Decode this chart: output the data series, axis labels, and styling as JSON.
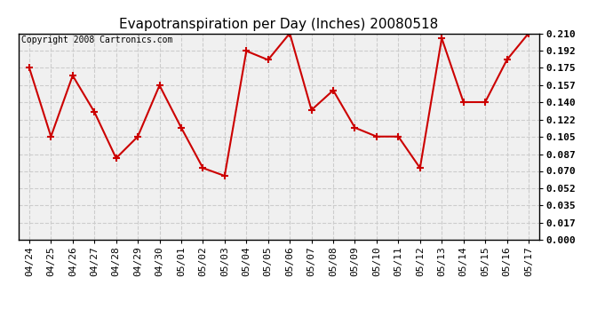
{
  "title": "Evapotranspiration per Day (Inches) 20080518",
  "copyright": "Copyright 2008 Cartronics.com",
  "x_labels": [
    "04/24",
    "04/25",
    "04/26",
    "04/27",
    "04/28",
    "04/29",
    "04/30",
    "05/01",
    "05/02",
    "05/03",
    "05/04",
    "05/05",
    "05/06",
    "05/07",
    "05/08",
    "05/09",
    "05/10",
    "05/11",
    "05/12",
    "05/13",
    "05/14",
    "05/15",
    "05/16",
    "05/17"
  ],
  "y_values": [
    0.175,
    0.105,
    0.167,
    0.13,
    0.083,
    0.105,
    0.157,
    0.114,
    0.073,
    0.065,
    0.192,
    0.183,
    0.21,
    0.132,
    0.152,
    0.114,
    0.105,
    0.105,
    0.073,
    0.205,
    0.14,
    0.14,
    0.183,
    0.21
  ],
  "y_ticks": [
    0.0,
    0.017,
    0.035,
    0.052,
    0.07,
    0.087,
    0.105,
    0.122,
    0.14,
    0.157,
    0.175,
    0.192,
    0.21
  ],
  "line_color": "#cc0000",
  "marker": "+",
  "marker_size": 6,
  "bg_color": "#ffffff",
  "plot_bg_color": "#f0f0f0",
  "grid_color": "#cccccc",
  "title_fontsize": 11,
  "tick_fontsize": 8,
  "copyright_fontsize": 7
}
